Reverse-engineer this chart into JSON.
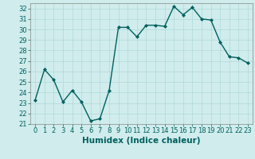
{
  "x": [
    0,
    1,
    2,
    3,
    4,
    5,
    6,
    7,
    8,
    9,
    10,
    11,
    12,
    13,
    14,
    15,
    16,
    17,
    18,
    19,
    20,
    21,
    22,
    23
  ],
  "y": [
    23.3,
    26.2,
    25.2,
    23.1,
    24.2,
    23.1,
    21.3,
    21.5,
    24.2,
    30.2,
    30.2,
    29.3,
    30.4,
    30.4,
    30.3,
    32.2,
    31.4,
    32.1,
    31.0,
    30.9,
    28.8,
    27.4,
    27.3,
    26.8
  ],
  "line_color": "#006060",
  "marker": "D",
  "marker_size": 2.0,
  "bg_color": "#d0ecec",
  "grid_color": "#b0d8d8",
  "xlabel": "Humidex (Indice chaleur)",
  "ylim": [
    21,
    32.5
  ],
  "xlim": [
    -0.5,
    23.5
  ],
  "yticks": [
    21,
    22,
    23,
    24,
    25,
    26,
    27,
    28,
    29,
    30,
    31,
    32
  ],
  "xticks": [
    0,
    1,
    2,
    3,
    4,
    5,
    6,
    7,
    8,
    9,
    10,
    11,
    12,
    13,
    14,
    15,
    16,
    17,
    18,
    19,
    20,
    21,
    22,
    23
  ],
  "tick_label_fontsize": 6.0,
  "xlabel_fontsize": 7.5,
  "linewidth": 1.0
}
